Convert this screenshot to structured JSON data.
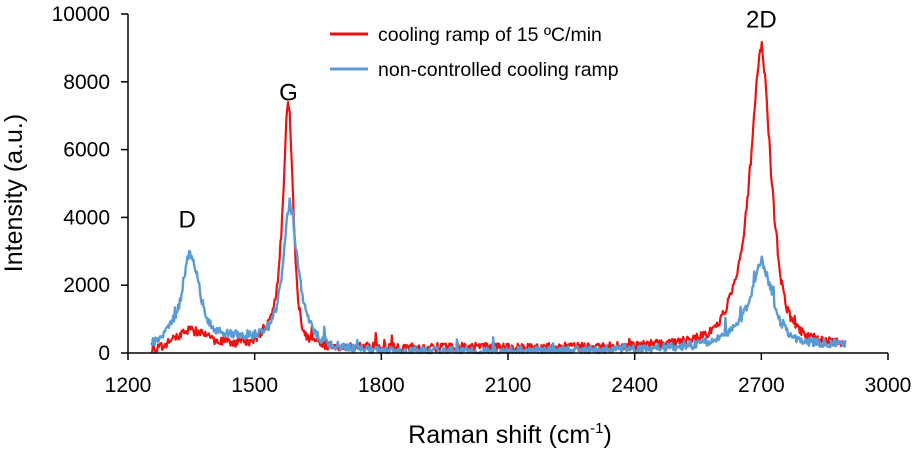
{
  "chart_data": {
    "type": "line",
    "title": "",
    "xlabel_main": "Raman shift (cm",
    "xlabel_sup": "-1",
    "xlabel_end": ")",
    "ylabel": "Intensity (a.u.)",
    "xlim": [
      1200,
      3000
    ],
    "ylim": [
      0,
      10000
    ],
    "xticks": [
      1200,
      1500,
      1800,
      2100,
      2400,
      2700,
      3000
    ],
    "yticks": [
      0,
      2000,
      4000,
      6000,
      8000,
      10000
    ],
    "legend_position": "top-center",
    "grid": false,
    "annotations": [
      {
        "text": "D",
        "x": 1340,
        "y": 3700
      },
      {
        "text": "G",
        "x": 1580,
        "y": 7450
      },
      {
        "text": "2D",
        "x": 2700,
        "y": 9600
      }
    ],
    "series": [
      {
        "name": "cooling ramp of 15 ºC/min",
        "color": "#ee1111",
        "x": [
          1255,
          1270,
          1290,
          1310,
          1330,
          1345,
          1360,
          1380,
          1400,
          1430,
          1460,
          1490,
          1510,
          1530,
          1545,
          1555,
          1562,
          1568,
          1573,
          1577,
          1580,
          1583,
          1587,
          1592,
          1597,
          1603,
          1610,
          1620,
          1640,
          1660,
          1700,
          1800,
          1900,
          2000,
          2100,
          2200,
          2300,
          2400,
          2500,
          2550,
          2580,
          2600,
          2620,
          2640,
          2655,
          2665,
          2675,
          2683,
          2690,
          2695,
          2700,
          2705,
          2710,
          2717,
          2725,
          2735,
          2745,
          2760,
          2780,
          2810,
          2850,
          2900
        ],
        "values": [
          150,
          120,
          250,
          450,
          600,
          700,
          650,
          550,
          400,
          350,
          300,
          350,
          500,
          800,
          1300,
          2200,
          3400,
          4800,
          6200,
          7100,
          7250,
          7000,
          5900,
          4200,
          2700,
          1600,
          900,
          500,
          300,
          250,
          200,
          180,
          160,
          170,
          160,
          170,
          190,
          220,
          300,
          450,
          650,
          900,
          1400,
          2200,
          3200,
          4300,
          5600,
          6900,
          8000,
          8700,
          9000,
          8700,
          8000,
          6600,
          5000,
          3500,
          2300,
          1300,
          800,
          500,
          350,
          280
        ]
      },
      {
        "name": "non-controlled cooling ramp",
        "color": "#5b9bd5",
        "x": [
          1255,
          1270,
          1290,
          1305,
          1320,
          1330,
          1338,
          1345,
          1352,
          1360,
          1368,
          1378,
          1390,
          1410,
          1440,
          1470,
          1500,
          1520,
          1540,
          1555,
          1565,
          1572,
          1578,
          1583,
          1588,
          1593,
          1600,
          1608,
          1618,
          1630,
          1650,
          1680,
          1750,
          1850,
          1950,
          2050,
          2150,
          2250,
          2350,
          2450,
          2550,
          2600,
          2630,
          2655,
          2670,
          2680,
          2688,
          2695,
          2700,
          2706,
          2713,
          2722,
          2732,
          2745,
          2760,
          2780,
          2800,
          2830,
          2870,
          2900
        ],
        "values": [
          300,
          400,
          650,
          900,
          1350,
          2000,
          2600,
          2950,
          2850,
          2500,
          2000,
          1400,
          900,
          650,
          600,
          550,
          550,
          650,
          900,
          1500,
          2400,
          3300,
          4100,
          4350,
          4200,
          3700,
          2900,
          2100,
          1400,
          900,
          500,
          250,
          100,
          70,
          60,
          50,
          60,
          70,
          90,
          130,
          250,
          450,
          700,
          1100,
          1500,
          1900,
          2300,
          2600,
          2700,
          2600,
          2300,
          1900,
          1400,
          950,
          650,
          450,
          350,
          300,
          270,
          280
        ]
      }
    ]
  }
}
